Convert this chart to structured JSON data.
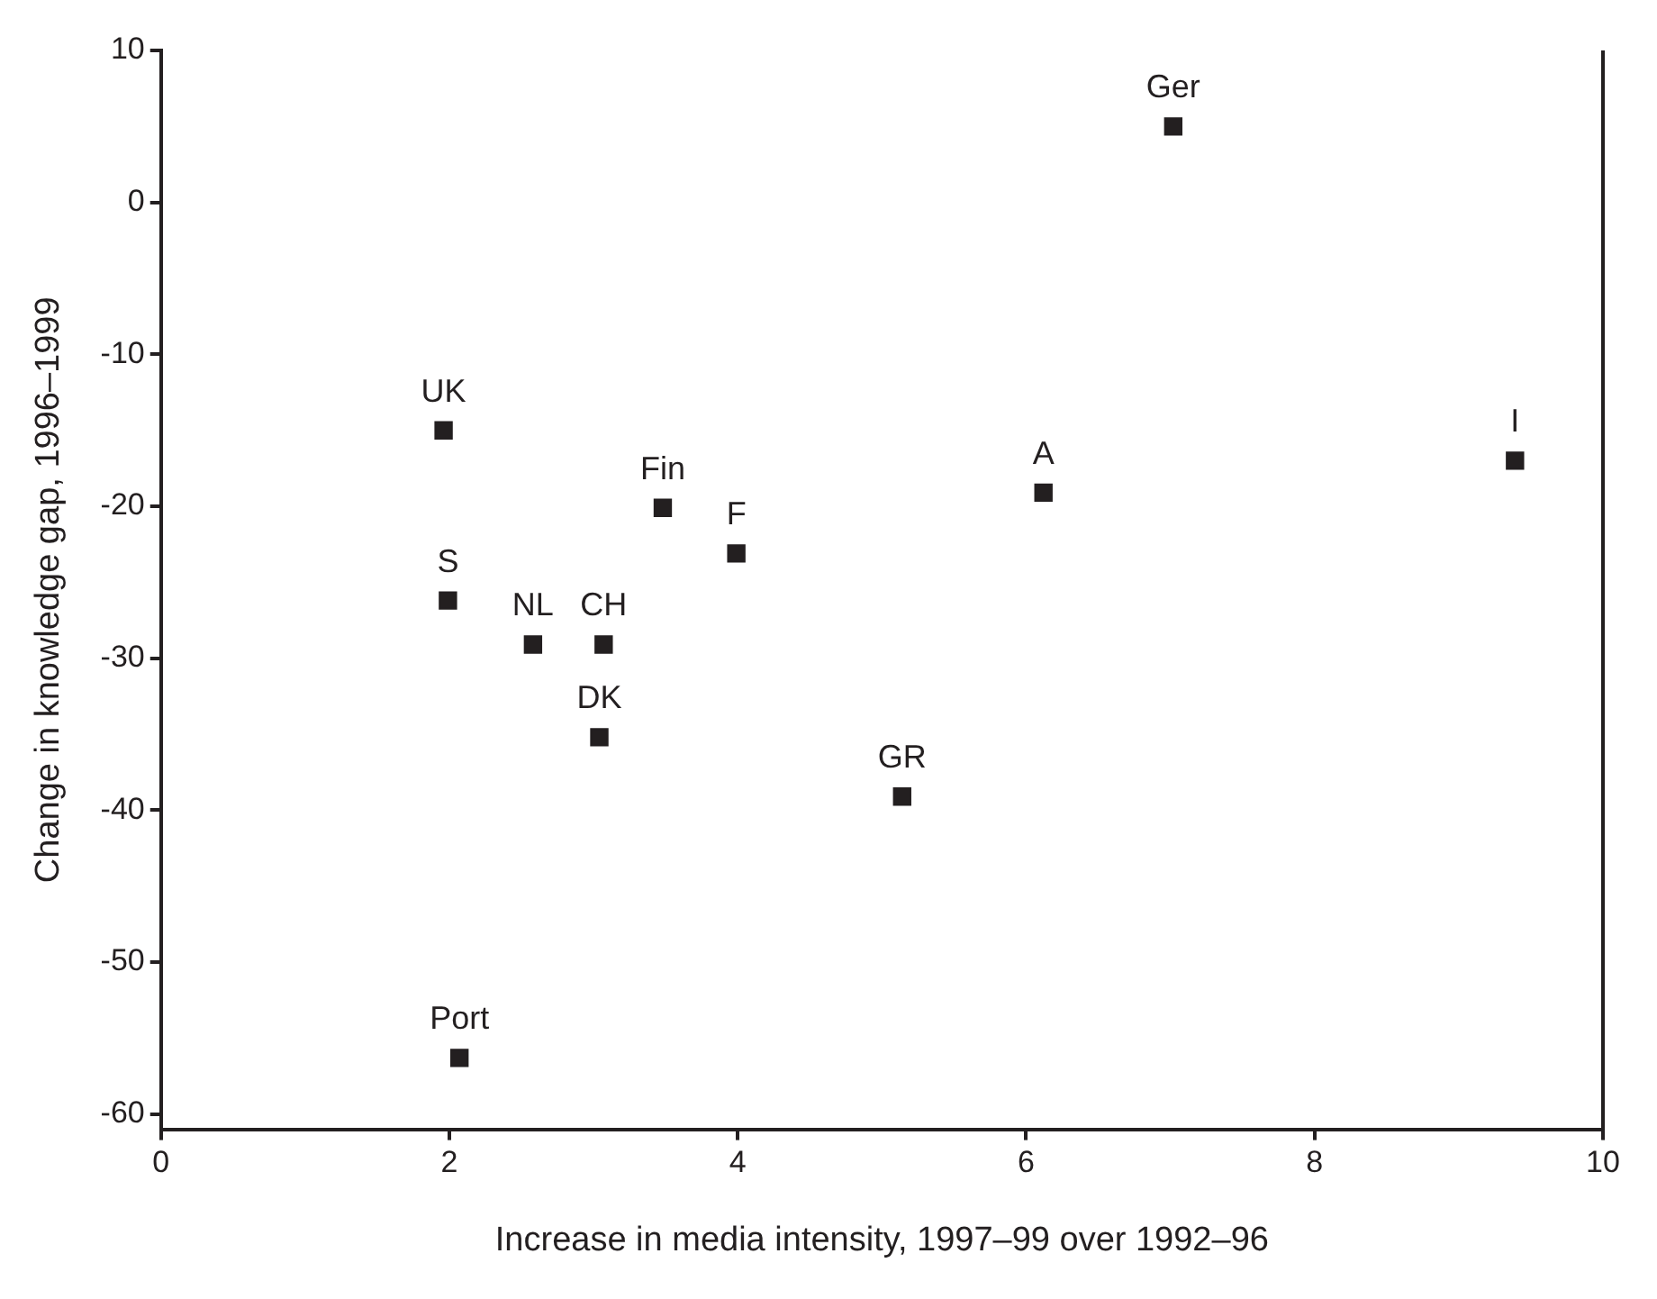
{
  "chart_data": {
    "type": "scatter",
    "xlabel": "Increase in media intensity, 1997–99 over 1992–96",
    "ylabel": "Change in knowledge gap, 1996–1999",
    "series": [
      {
        "color": "#231f20",
        "x": [
          1.96,
          1.99,
          2.58,
          3.07,
          3.04,
          3.48,
          3.99,
          2.07,
          6.12,
          9.39,
          5.14,
          7.02
        ],
        "values": [
          -15,
          -26.2,
          -29.1,
          -29.1,
          -35.2,
          -20.1,
          -23.1,
          -56.3,
          -19.1,
          -17,
          -39.1,
          5
        ]
      }
    ],
    "annotations": [
      {
        "text": "UK",
        "x": 1.96,
        "y": -15
      },
      {
        "text": "S",
        "x": 1.99,
        "y": -26.2
      },
      {
        "text": "NL",
        "x": 2.58,
        "y": -29.1
      },
      {
        "text": "CH",
        "x": 3.07,
        "y": -29.1
      },
      {
        "text": "DK",
        "x": 3.04,
        "y": -35.2
      },
      {
        "text": "Fin",
        "x": 3.48,
        "y": -20.1
      },
      {
        "text": "F",
        "x": 3.99,
        "y": -23.1
      },
      {
        "text": "Port",
        "x": 2.07,
        "y": -56.3
      },
      {
        "text": "A",
        "x": 6.12,
        "y": -19.1
      },
      {
        "text": "I",
        "x": 9.39,
        "y": -17
      },
      {
        "text": "GR",
        "x": 5.14,
        "y": -39.1
      },
      {
        "text": "Ger",
        "x": 7.02,
        "y": 5
      }
    ],
    "marker": "square",
    "grid": false,
    "legend": false,
    "xlim": [
      0,
      10
    ],
    "xticks": [
      0,
      2,
      4,
      6,
      8,
      10
    ],
    "ylim": [
      -61,
      10
    ],
    "yticks": [
      -60,
      -50,
      -40,
      -30,
      -20,
      -10,
      0,
      10
    ]
  }
}
